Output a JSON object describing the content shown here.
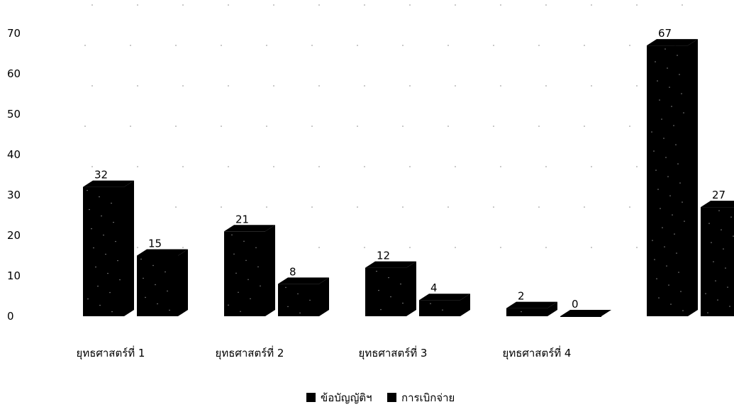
{
  "chart_data": {
    "type": "bar",
    "style": "3d-clustered-column",
    "categories": [
      "ยุทธศาสตร์ที่ 1",
      "ยุทธศาสตร์ที่ 2",
      "ยุทธศาสตร์ที่ 3",
      "ยุทธศาสตร์ที่ 4",
      ""
    ],
    "series": [
      {
        "name": "ข้อบัญญัติฯ",
        "values": [
          32,
          21,
          12,
          2,
          67
        ]
      },
      {
        "name": "การเบิกจ่าย",
        "values": [
          15,
          8,
          4,
          0,
          27
        ]
      }
    ],
    "ylim": [
      0,
      70
    ],
    "yticks": [
      0,
      10,
      20,
      30,
      40,
      50,
      60,
      70
    ],
    "legend": "bottom",
    "colors": {
      "series1": "#000000",
      "series2": "#000000",
      "text": "#000000",
      "background": "#ffffff"
    }
  }
}
